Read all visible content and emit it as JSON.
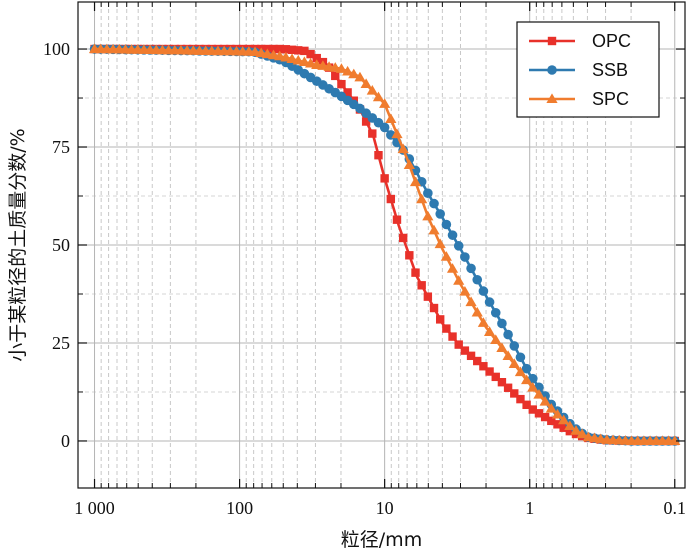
{
  "chart_data": {
    "type": "line",
    "title": "",
    "xlabel": "粒径/mm",
    "ylabel": "小于某粒径的土质量分数/%",
    "x_scale": "log",
    "x_reversed": true,
    "xlim": [
      1300,
      0.085
    ],
    "ylim": [
      -12,
      112
    ],
    "x_ticks": [
      1000,
      100,
      10,
      1,
      0.1
    ],
    "x_tick_labels": [
      "1 000",
      "100",
      "10",
      "1",
      "0.1"
    ],
    "y_ticks": [
      0,
      25,
      50,
      75,
      100
    ],
    "y_tick_labels": [
      "0",
      "25",
      "50",
      "75",
      "100"
    ],
    "grid": true,
    "legend_position": "top-right",
    "series": [
      {
        "name": "OPC",
        "color": "#e8312a",
        "marker": "square",
        "x": [
          1000,
          50,
          35,
          25,
          15,
          12,
          10,
          8,
          6,
          4,
          3,
          2,
          1.5,
          1,
          0.7,
          0.5,
          0.4,
          0.3,
          0.2,
          0.1
        ],
        "y": [
          100,
          100,
          99.5,
          96,
          85,
          78,
          67,
          55,
          42,
          30,
          24,
          18.5,
          14.5,
          8.5,
          5,
          2,
          0.8,
          0.2,
          0,
          0
        ]
      },
      {
        "name": "SSB",
        "color": "#2e7ab0",
        "marker": "circle",
        "x": [
          1000,
          80,
          50,
          30,
          20,
          15,
          10,
          7,
          5,
          4,
          3,
          2,
          1.5,
          1,
          0.7,
          0.5,
          0.4,
          0.3,
          0.2,
          0.1
        ],
        "y": [
          100,
          99.3,
          97,
          92,
          88,
          85,
          80,
          73,
          63,
          57,
          49,
          37,
          29,
          17,
          9,
          3.5,
          1,
          0.3,
          0,
          0
        ]
      },
      {
        "name": "SPC",
        "color": "#f07c2e",
        "marker": "triangle",
        "x": [
          1000,
          80,
          50,
          30,
          20,
          15,
          10,
          7,
          5,
          4,
          3,
          2,
          1.5,
          1,
          0.7,
          0.5,
          0.4,
          0.3,
          0.2,
          0.1
        ],
        "y": [
          100,
          99.3,
          98,
          96,
          95,
          93,
          86,
          72,
          57,
          49,
          40,
          29,
          23,
          14.5,
          8,
          3,
          1,
          0.3,
          0,
          0
        ]
      }
    ]
  }
}
